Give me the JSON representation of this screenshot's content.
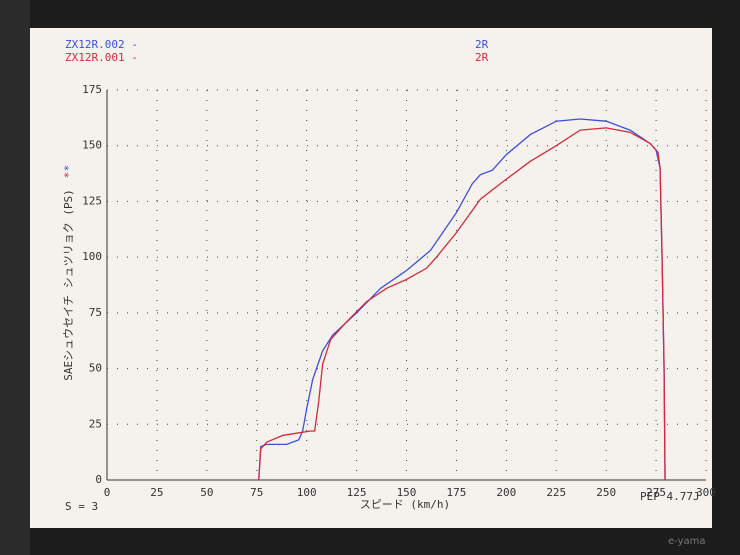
{
  "chart_data": {
    "type": "line",
    "ylabel": "SAEシュウセイチ シュツリョク (PS)",
    "xlabel": "スピード (km/h)",
    "note_left": "S = 3",
    "note_right": "PEP 4.77J",
    "brand": "e-yama",
    "xlim": [
      0,
      300
    ],
    "xticks": [
      0,
      25,
      50,
      75,
      100,
      125,
      150,
      175,
      200,
      225,
      250,
      275,
      300
    ],
    "ylim": [
      0,
      175
    ],
    "yticks": [
      0,
      25,
      50,
      75,
      100,
      125,
      150,
      175
    ],
    "grid": true,
    "series": [
      {
        "name": "ZX12R.002 -",
        "tag": "2R",
        "marker": "*",
        "color": "#3b4fd8",
        "x": [
          76,
          77,
          80,
          90,
          96,
          98,
          100,
          103,
          108,
          113,
          125,
          137,
          150,
          162,
          175,
          183,
          187,
          193,
          200,
          212,
          225,
          237,
          250,
          262,
          272,
          275,
          277,
          278,
          279,
          279.5
        ],
        "values": [
          0,
          15,
          16,
          16,
          18,
          22,
          32,
          45,
          58,
          65,
          75,
          86,
          94,
          103,
          120,
          133,
          137,
          139,
          146,
          155,
          161,
          162,
          161,
          157,
          151,
          148,
          140,
          100,
          50,
          0
        ]
      },
      {
        "name": "ZX12R.001 -",
        "tag": "2R",
        "marker": "*",
        "color": "#d42a3a",
        "x": [
          76,
          77,
          80,
          88,
          95,
          102,
          104,
          106,
          108,
          112,
          120,
          130,
          140,
          150,
          160,
          165,
          175,
          187,
          200,
          212,
          225,
          237,
          250,
          262,
          272,
          276,
          277,
          278,
          279,
          279.5
        ],
        "values": [
          0,
          14,
          17,
          20,
          21,
          22,
          22,
          35,
          52,
          63,
          71,
          80,
          86,
          90,
          95,
          100,
          111,
          126,
          135,
          143,
          150,
          157,
          158,
          156,
          151,
          147,
          140,
          100,
          50,
          0
        ]
      }
    ]
  }
}
